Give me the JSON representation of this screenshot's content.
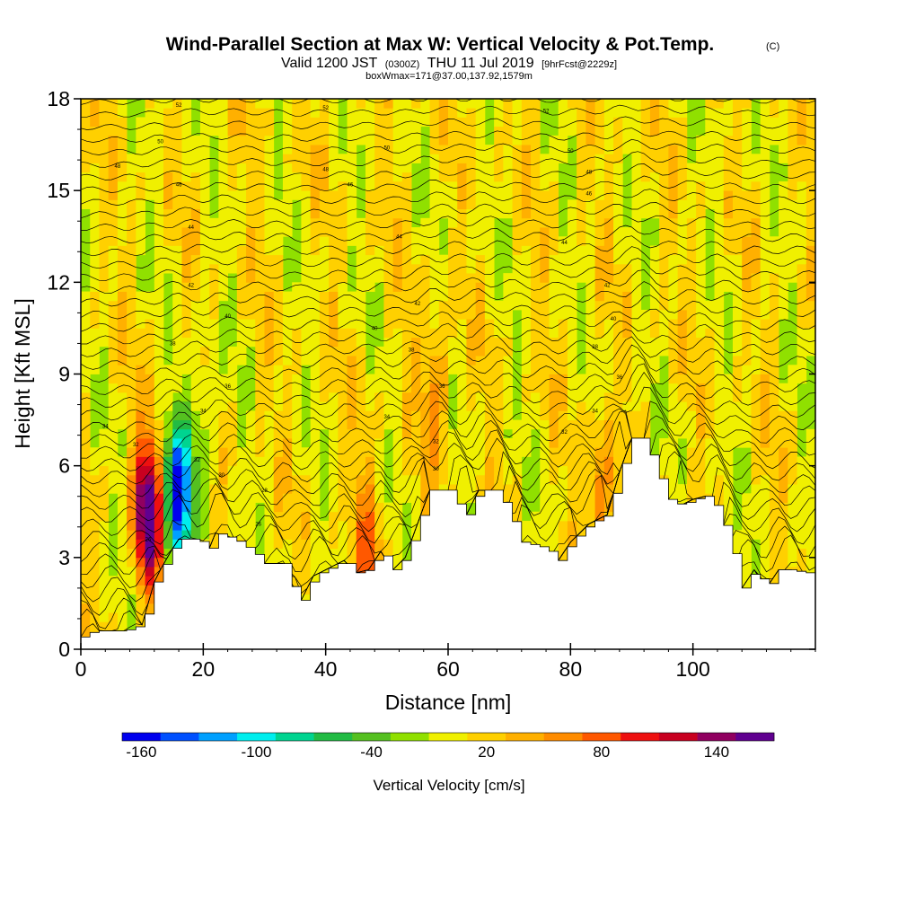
{
  "chart_data": {
    "type": "heatmap",
    "title": "Wind-Parallel Section at Max W: Vertical Velocity & Pot.Temp.",
    "title_mark": "(C)",
    "subtitle_parts": [
      "Valid 1200 JST",
      "(0300Z)",
      "THU 11 Jul 2019",
      "[9hrFcst@2229z]"
    ],
    "subtitle2": "boxWmax=171@37.00,137.92,1579m",
    "xlabel": "Distance [nm]",
    "ylabel": "Height [Kft MSL]",
    "xlim": [
      0,
      120
    ],
    "ylim": [
      0,
      18
    ],
    "x_ticks": [
      0,
      20,
      40,
      60,
      80,
      100
    ],
    "x_tick_labels": [
      "0",
      "20",
      "40",
      "60",
      "80",
      "100"
    ],
    "y_ticks": [
      0,
      3,
      6,
      9,
      12,
      15,
      18
    ],
    "y_tick_labels": [
      "0",
      "3",
      "6",
      "9",
      "12",
      "15",
      "18"
    ],
    "colorbar": {
      "title": "Vertical Velocity [cm/s]",
      "colors": [
        "#0000ee",
        "#0050ff",
        "#00a0ff",
        "#00eeee",
        "#00d490",
        "#22bb44",
        "#55c020",
        "#90e000",
        "#f0f000",
        "#ffd000",
        "#ffb000",
        "#ff8c00",
        "#ff5800",
        "#ee1010",
        "#c80020",
        "#900060",
        "#600090"
      ],
      "tick_values": [
        -160,
        -100,
        -40,
        20,
        80,
        140
      ],
      "tick_labels": [
        "-160",
        "-100",
        "-40",
        "20",
        "80",
        "140"
      ],
      "min": -170,
      "max": 170
    },
    "terrain_heights_kft": [
      [
        0,
        0.4
      ],
      [
        2,
        0.6
      ],
      [
        4,
        0.6
      ],
      [
        7,
        0.6
      ],
      [
        10,
        0.8
      ],
      [
        11,
        1.5
      ],
      [
        12,
        2.2
      ],
      [
        13,
        2.6
      ],
      [
        15,
        3.3
      ],
      [
        16,
        3.6
      ],
      [
        19,
        3.6
      ],
      [
        21,
        3.3
      ],
      [
        22,
        3.8
      ],
      [
        25,
        3.6
      ],
      [
        28,
        3.2
      ],
      [
        30,
        2.8
      ],
      [
        33,
        2.8
      ],
      [
        35,
        1.8
      ],
      [
        36,
        1.6
      ],
      [
        38,
        2.4
      ],
      [
        40,
        2.6
      ],
      [
        43,
        2.9
      ],
      [
        45,
        2.5
      ],
      [
        47,
        2.6
      ],
      [
        49,
        3.2
      ],
      [
        51,
        2.6
      ],
      [
        53,
        3.0
      ],
      [
        55,
        4.1
      ],
      [
        57,
        5.2
      ],
      [
        60,
        5.2
      ],
      [
        62,
        4.6
      ],
      [
        63,
        4.4
      ],
      [
        65,
        5.2
      ],
      [
        68,
        5.2
      ],
      [
        70,
        4.4
      ],
      [
        72,
        3.5
      ],
      [
        76,
        3.3
      ],
      [
        78,
        2.9
      ],
      [
        80,
        3.5
      ],
      [
        83,
        4.1
      ],
      [
        86,
        4.4
      ],
      [
        88,
        5.8
      ],
      [
        90,
        6.9
      ],
      [
        92,
        6.9
      ],
      [
        94,
        5.8
      ],
      [
        96,
        4.9
      ],
      [
        98,
        4.7
      ],
      [
        100,
        4.9
      ],
      [
        102,
        5.0
      ],
      [
        104,
        4.6
      ],
      [
        106,
        3.5
      ],
      [
        108,
        2.0
      ],
      [
        110,
        2.6
      ],
      [
        112,
        2.0
      ],
      [
        114,
        2.6
      ],
      [
        116,
        2.6
      ],
      [
        118,
        2.5
      ],
      [
        120,
        2.5
      ]
    ],
    "velocity_features": [
      {
        "x": 11,
        "y": 4.5,
        "value": 171,
        "kind": "updraft"
      },
      {
        "x": 16,
        "y": 5.0,
        "value": -160,
        "kind": "downdraft"
      },
      {
        "x": 20,
        "y": 7.5,
        "value": -40,
        "kind": "downdraft"
      },
      {
        "x": 47,
        "y": 3.5,
        "value": 60,
        "kind": "updraft"
      },
      {
        "x": 58,
        "y": 8.5,
        "value": 50,
        "kind": "updraft"
      },
      {
        "x": 85,
        "y": 5.0,
        "value": 60,
        "kind": "updraft"
      }
    ],
    "theta_contour_labels": [
      {
        "x": 16,
        "y": 17.8,
        "text": "52"
      },
      {
        "x": 40,
        "y": 17.7,
        "text": "52"
      },
      {
        "x": 76,
        "y": 17.6,
        "text": "52"
      },
      {
        "x": 13,
        "y": 16.6,
        "text": "50"
      },
      {
        "x": 50,
        "y": 16.4,
        "text": "50"
      },
      {
        "x": 80,
        "y": 16.3,
        "text": "50"
      },
      {
        "x": 6,
        "y": 15.8,
        "text": "48"
      },
      {
        "x": 40,
        "y": 15.7,
        "text": "48"
      },
      {
        "x": 83,
        "y": 15.6,
        "text": "48"
      },
      {
        "x": 16,
        "y": 15.2,
        "text": "46"
      },
      {
        "x": 44,
        "y": 15.2,
        "text": "46"
      },
      {
        "x": 83,
        "y": 14.9,
        "text": "46"
      },
      {
        "x": 18,
        "y": 13.8,
        "text": "44"
      },
      {
        "x": 52,
        "y": 13.5,
        "text": "44"
      },
      {
        "x": 79,
        "y": 13.3,
        "text": "44"
      },
      {
        "x": 18,
        "y": 11.9,
        "text": "42"
      },
      {
        "x": 55,
        "y": 11.3,
        "text": "42"
      },
      {
        "x": 86,
        "y": 11.9,
        "text": "42"
      },
      {
        "x": 24,
        "y": 10.9,
        "text": "40"
      },
      {
        "x": 48,
        "y": 10.5,
        "text": "40"
      },
      {
        "x": 87,
        "y": 10.8,
        "text": "40"
      },
      {
        "x": 15,
        "y": 10.0,
        "text": "38"
      },
      {
        "x": 54,
        "y": 9.8,
        "text": "38"
      },
      {
        "x": 84,
        "y": 9.9,
        "text": "38"
      },
      {
        "x": 24,
        "y": 8.6,
        "text": "36"
      },
      {
        "x": 59,
        "y": 8.6,
        "text": "36"
      },
      {
        "x": 88,
        "y": 8.9,
        "text": "36"
      },
      {
        "x": 20,
        "y": 7.8,
        "text": "34"
      },
      {
        "x": 50,
        "y": 7.6,
        "text": "34"
      },
      {
        "x": 84,
        "y": 7.8,
        "text": "34"
      },
      {
        "x": 4,
        "y": 7.3,
        "text": "34"
      },
      {
        "x": 9,
        "y": 6.7,
        "text": "32"
      },
      {
        "x": 58,
        "y": 6.8,
        "text": "32"
      },
      {
        "x": 79,
        "y": 7.1,
        "text": "32"
      },
      {
        "x": 19,
        "y": 6.2,
        "text": "32"
      },
      {
        "x": 23,
        "y": 5.7,
        "text": "30"
      },
      {
        "x": 58,
        "y": 5.9,
        "text": "30"
      },
      {
        "x": 30,
        "y": 5.2,
        "text": "28"
      },
      {
        "x": 29,
        "y": 4.1,
        "text": "26"
      },
      {
        "x": 11,
        "y": 3.6,
        "text": "26"
      }
    ]
  }
}
